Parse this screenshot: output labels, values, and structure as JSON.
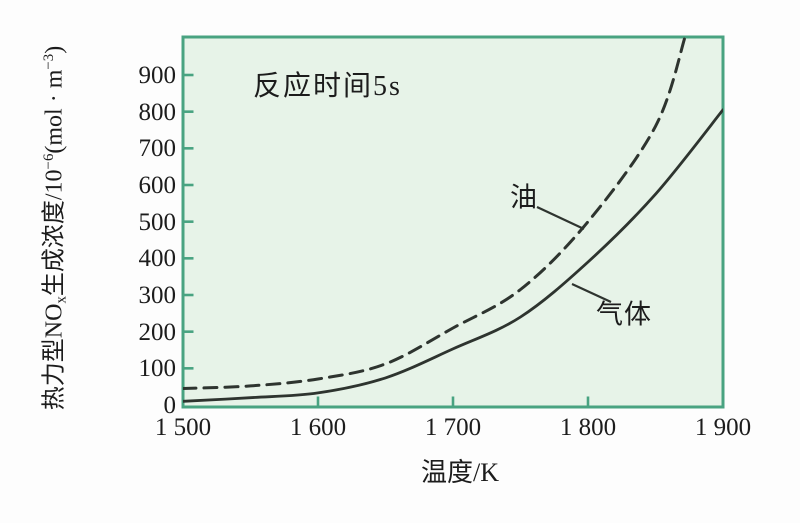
{
  "figure": {
    "annotation": "反应时间5s",
    "x_axis_title": "温度/K",
    "y_axis_title_parts": {
      "p1": "热力型NO",
      "sub1": "x",
      "p2": "生成浓度/10",
      "sup1": "−6",
      "p3": "(mol · m",
      "sup2": "−3",
      "p4": ")"
    }
  },
  "colors": {
    "frame_green": "#49a381",
    "plot_fill": "#e7f3e8",
    "curve": "#2e342f",
    "text": "#1c1c1c"
  },
  "chart_data": {
    "type": "line",
    "title": "",
    "annotation": "反应时间5s",
    "xlabel": "温度/K",
    "ylabel": "热力型NOx生成浓度/10−6(mol·m−3)",
    "xlim": [
      1500,
      1900
    ],
    "ylim": [
      0,
      1000
    ],
    "grid": false,
    "legend_position": "inline-labels-with-leader-lines",
    "x_ticks": [
      1500,
      1600,
      1700,
      1800,
      1900
    ],
    "x_tick_labels": [
      "1 500",
      "1 600",
      "1 700",
      "1 800",
      "1 900"
    ],
    "x_inner_tick_marks": [
      1600,
      1700,
      1800
    ],
    "y_ticks": [
      0,
      100,
      200,
      300,
      400,
      500,
      600,
      700,
      800,
      900
    ],
    "series": [
      {
        "name": "油",
        "line_style": "dashed",
        "x": [
          1500,
          1550,
          1600,
          1650,
          1700,
          1750,
          1800,
          1850,
          1872
        ],
        "values": [
          45,
          52,
          71,
          112,
          210,
          315,
          500,
          760,
          1005
        ]
      },
      {
        "name": "气体",
        "line_style": "solid",
        "x": [
          1500,
          1550,
          1600,
          1650,
          1700,
          1750,
          1800,
          1850,
          1900
        ],
        "values": [
          10,
          20,
          33,
          74,
          153,
          240,
          390,
          575,
          805
        ]
      }
    ]
  }
}
